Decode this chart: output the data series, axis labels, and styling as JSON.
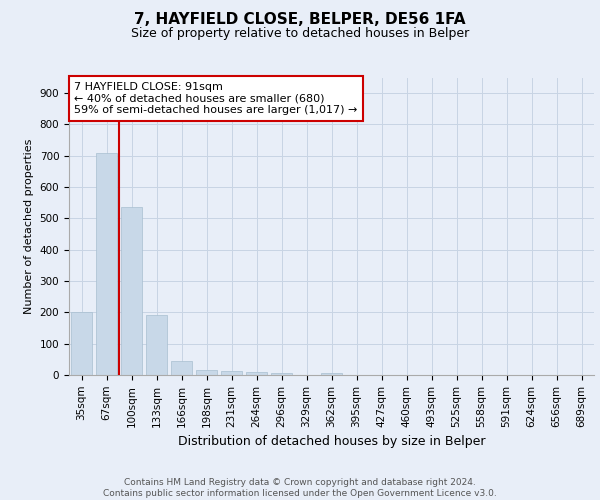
{
  "title1": "7, HAYFIELD CLOSE, BELPER, DE56 1FA",
  "title2": "Size of property relative to detached houses in Belper",
  "xlabel": "Distribution of detached houses by size in Belper",
  "ylabel": "Number of detached properties",
  "categories": [
    "35sqm",
    "67sqm",
    "100sqm",
    "133sqm",
    "166sqm",
    "198sqm",
    "231sqm",
    "264sqm",
    "296sqm",
    "329sqm",
    "362sqm",
    "395sqm",
    "427sqm",
    "460sqm",
    "493sqm",
    "525sqm",
    "558sqm",
    "591sqm",
    "624sqm",
    "656sqm",
    "689sqm"
  ],
  "values": [
    200,
    710,
    535,
    193,
    45,
    17,
    12,
    10,
    7,
    0,
    7,
    0,
    0,
    0,
    0,
    0,
    0,
    0,
    0,
    0,
    0
  ],
  "bar_color": "#c8d8e8",
  "bar_edge_color": "#a8bfd0",
  "grid_color": "#c8d4e4",
  "vline_x_index": 1.5,
  "vline_color": "#cc0000",
  "annotation_text": "7 HAYFIELD CLOSE: 91sqm\n← 40% of detached houses are smaller (680)\n59% of semi-detached houses are larger (1,017) →",
  "annotation_box_color": "#ffffff",
  "annotation_box_edge": "#cc0000",
  "ylim": [
    0,
    950
  ],
  "yticks": [
    0,
    100,
    200,
    300,
    400,
    500,
    600,
    700,
    800,
    900
  ],
  "footer": "Contains HM Land Registry data © Crown copyright and database right 2024.\nContains public sector information licensed under the Open Government Licence v3.0.",
  "bg_color": "#e8eef8",
  "plot_bg_color": "#e8eef8",
  "title1_fontsize": 11,
  "title2_fontsize": 9,
  "ylabel_fontsize": 8,
  "xlabel_fontsize": 9,
  "tick_fontsize": 7.5,
  "ann_fontsize": 8,
  "footer_fontsize": 6.5
}
